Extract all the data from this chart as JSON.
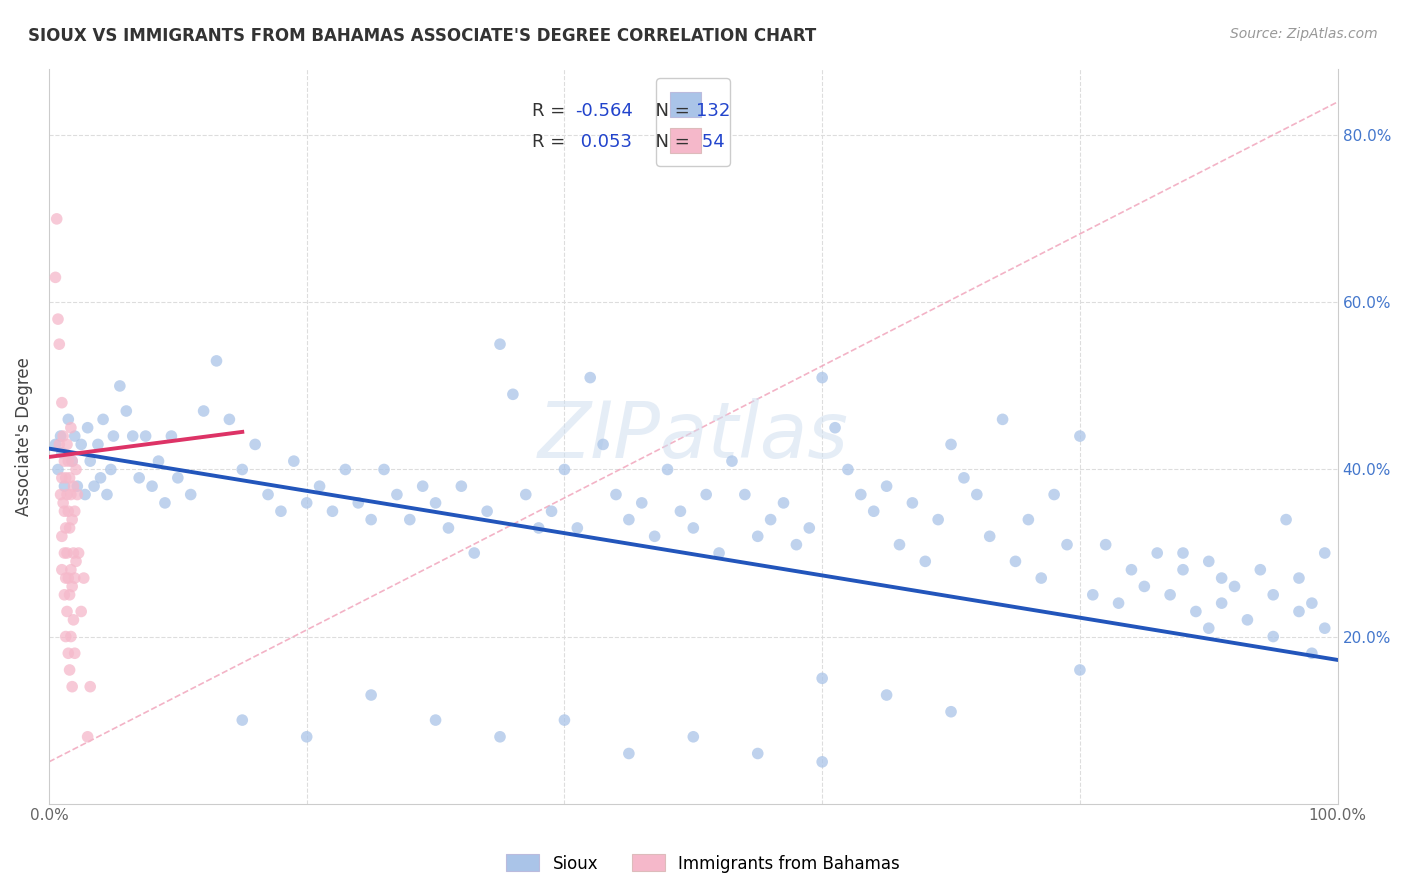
{
  "title": "SIOUX VS IMMIGRANTS FROM BAHAMAS ASSOCIATE'S DEGREE CORRELATION CHART",
  "source": "Source: ZipAtlas.com",
  "ylabel": "Associate's Degree",
  "xlim": [
    0.0,
    1.0
  ],
  "ylim": [
    0.0,
    0.88
  ],
  "x_ticks": [
    0.0,
    0.2,
    0.4,
    0.6,
    0.8,
    1.0
  ],
  "x_tick_labels": [
    "0.0%",
    "",
    "",
    "",
    "",
    "100.0%"
  ],
  "y_ticks": [
    0.2,
    0.4,
    0.6,
    0.8
  ],
  "y_tick_labels_right": [
    "20.0%",
    "40.0%",
    "60.0%",
    "80.0%"
  ],
  "sioux_color": "#aac4e8",
  "bahamas_color": "#f5b8ca",
  "sioux_line_color": "#2255bb",
  "bahamas_line_color": "#dd3366",
  "sioux_R": "-0.564",
  "sioux_N": "132",
  "bahamas_R": "0.053",
  "bahamas_N": "54",
  "watermark_text": "ZIPatlas",
  "sioux_trend": [
    0.0,
    0.425,
    1.0,
    0.172
  ],
  "bahamas_trend": [
    0.0,
    0.415,
    0.15,
    0.445
  ],
  "dashed_trend": [
    0.0,
    0.05,
    1.0,
    0.84
  ],
  "sioux_points": [
    [
      0.005,
      0.43
    ],
    [
      0.007,
      0.4
    ],
    [
      0.009,
      0.44
    ],
    [
      0.01,
      0.42
    ],
    [
      0.012,
      0.38
    ],
    [
      0.015,
      0.46
    ],
    [
      0.018,
      0.41
    ],
    [
      0.02,
      0.44
    ],
    [
      0.022,
      0.38
    ],
    [
      0.025,
      0.43
    ],
    [
      0.028,
      0.37
    ],
    [
      0.03,
      0.45
    ],
    [
      0.032,
      0.41
    ],
    [
      0.035,
      0.38
    ],
    [
      0.038,
      0.43
    ],
    [
      0.04,
      0.39
    ],
    [
      0.042,
      0.46
    ],
    [
      0.045,
      0.37
    ],
    [
      0.048,
      0.4
    ],
    [
      0.05,
      0.44
    ],
    [
      0.055,
      0.5
    ],
    [
      0.06,
      0.47
    ],
    [
      0.065,
      0.44
    ],
    [
      0.07,
      0.39
    ],
    [
      0.075,
      0.44
    ],
    [
      0.08,
      0.38
    ],
    [
      0.085,
      0.41
    ],
    [
      0.09,
      0.36
    ],
    [
      0.095,
      0.44
    ],
    [
      0.1,
      0.39
    ],
    [
      0.11,
      0.37
    ],
    [
      0.12,
      0.47
    ],
    [
      0.13,
      0.53
    ],
    [
      0.14,
      0.46
    ],
    [
      0.15,
      0.4
    ],
    [
      0.16,
      0.43
    ],
    [
      0.17,
      0.37
    ],
    [
      0.18,
      0.35
    ],
    [
      0.19,
      0.41
    ],
    [
      0.2,
      0.36
    ],
    [
      0.21,
      0.38
    ],
    [
      0.22,
      0.35
    ],
    [
      0.23,
      0.4
    ],
    [
      0.24,
      0.36
    ],
    [
      0.25,
      0.34
    ],
    [
      0.26,
      0.4
    ],
    [
      0.27,
      0.37
    ],
    [
      0.28,
      0.34
    ],
    [
      0.29,
      0.38
    ],
    [
      0.3,
      0.36
    ],
    [
      0.31,
      0.33
    ],
    [
      0.32,
      0.38
    ],
    [
      0.33,
      0.3
    ],
    [
      0.34,
      0.35
    ],
    [
      0.35,
      0.55
    ],
    [
      0.36,
      0.49
    ],
    [
      0.37,
      0.37
    ],
    [
      0.38,
      0.33
    ],
    [
      0.39,
      0.35
    ],
    [
      0.4,
      0.4
    ],
    [
      0.41,
      0.33
    ],
    [
      0.42,
      0.51
    ],
    [
      0.43,
      0.43
    ],
    [
      0.44,
      0.37
    ],
    [
      0.45,
      0.34
    ],
    [
      0.46,
      0.36
    ],
    [
      0.47,
      0.32
    ],
    [
      0.48,
      0.4
    ],
    [
      0.49,
      0.35
    ],
    [
      0.5,
      0.33
    ],
    [
      0.51,
      0.37
    ],
    [
      0.52,
      0.3
    ],
    [
      0.53,
      0.41
    ],
    [
      0.54,
      0.37
    ],
    [
      0.55,
      0.32
    ],
    [
      0.56,
      0.34
    ],
    [
      0.57,
      0.36
    ],
    [
      0.58,
      0.31
    ],
    [
      0.59,
      0.33
    ],
    [
      0.6,
      0.51
    ],
    [
      0.6,
      0.15
    ],
    [
      0.61,
      0.45
    ],
    [
      0.62,
      0.4
    ],
    [
      0.63,
      0.37
    ],
    [
      0.64,
      0.35
    ],
    [
      0.65,
      0.38
    ],
    [
      0.65,
      0.13
    ],
    [
      0.66,
      0.31
    ],
    [
      0.67,
      0.36
    ],
    [
      0.68,
      0.29
    ],
    [
      0.69,
      0.34
    ],
    [
      0.7,
      0.43
    ],
    [
      0.7,
      0.11
    ],
    [
      0.71,
      0.39
    ],
    [
      0.72,
      0.37
    ],
    [
      0.73,
      0.32
    ],
    [
      0.74,
      0.46
    ],
    [
      0.75,
      0.29
    ],
    [
      0.76,
      0.34
    ],
    [
      0.77,
      0.27
    ],
    [
      0.78,
      0.37
    ],
    [
      0.79,
      0.31
    ],
    [
      0.8,
      0.44
    ],
    [
      0.8,
      0.16
    ],
    [
      0.81,
      0.25
    ],
    [
      0.82,
      0.31
    ],
    [
      0.83,
      0.24
    ],
    [
      0.84,
      0.28
    ],
    [
      0.85,
      0.26
    ],
    [
      0.86,
      0.3
    ],
    [
      0.87,
      0.25
    ],
    [
      0.88,
      0.28
    ],
    [
      0.88,
      0.3
    ],
    [
      0.89,
      0.23
    ],
    [
      0.9,
      0.21
    ],
    [
      0.9,
      0.29
    ],
    [
      0.91,
      0.24
    ],
    [
      0.91,
      0.27
    ],
    [
      0.92,
      0.26
    ],
    [
      0.93,
      0.22
    ],
    [
      0.94,
      0.28
    ],
    [
      0.95,
      0.2
    ],
    [
      0.95,
      0.25
    ],
    [
      0.96,
      0.34
    ],
    [
      0.97,
      0.27
    ],
    [
      0.97,
      0.23
    ],
    [
      0.98,
      0.18
    ],
    [
      0.98,
      0.24
    ],
    [
      0.99,
      0.21
    ],
    [
      0.99,
      0.3
    ],
    [
      0.15,
      0.1
    ],
    [
      0.2,
      0.08
    ],
    [
      0.25,
      0.13
    ],
    [
      0.3,
      0.1
    ],
    [
      0.35,
      0.08
    ],
    [
      0.4,
      0.1
    ],
    [
      0.45,
      0.06
    ],
    [
      0.5,
      0.08
    ],
    [
      0.55,
      0.06
    ],
    [
      0.6,
      0.05
    ]
  ],
  "bahamas_points": [
    [
      0.005,
      0.63
    ],
    [
      0.006,
      0.7
    ],
    [
      0.007,
      0.58
    ],
    [
      0.008,
      0.55
    ],
    [
      0.008,
      0.43
    ],
    [
      0.009,
      0.37
    ],
    [
      0.01,
      0.48
    ],
    [
      0.01,
      0.39
    ],
    [
      0.01,
      0.32
    ],
    [
      0.01,
      0.28
    ],
    [
      0.011,
      0.44
    ],
    [
      0.011,
      0.36
    ],
    [
      0.012,
      0.41
    ],
    [
      0.012,
      0.35
    ],
    [
      0.012,
      0.3
    ],
    [
      0.012,
      0.25
    ],
    [
      0.013,
      0.39
    ],
    [
      0.013,
      0.33
    ],
    [
      0.013,
      0.27
    ],
    [
      0.013,
      0.2
    ],
    [
      0.014,
      0.43
    ],
    [
      0.014,
      0.37
    ],
    [
      0.014,
      0.3
    ],
    [
      0.014,
      0.23
    ],
    [
      0.015,
      0.41
    ],
    [
      0.015,
      0.35
    ],
    [
      0.015,
      0.27
    ],
    [
      0.015,
      0.18
    ],
    [
      0.016,
      0.39
    ],
    [
      0.016,
      0.33
    ],
    [
      0.016,
      0.25
    ],
    [
      0.016,
      0.16
    ],
    [
      0.017,
      0.45
    ],
    [
      0.017,
      0.37
    ],
    [
      0.017,
      0.28
    ],
    [
      0.017,
      0.2
    ],
    [
      0.018,
      0.41
    ],
    [
      0.018,
      0.34
    ],
    [
      0.018,
      0.26
    ],
    [
      0.018,
      0.14
    ],
    [
      0.019,
      0.38
    ],
    [
      0.019,
      0.3
    ],
    [
      0.019,
      0.22
    ],
    [
      0.02,
      0.35
    ],
    [
      0.02,
      0.27
    ],
    [
      0.02,
      0.18
    ],
    [
      0.021,
      0.4
    ],
    [
      0.021,
      0.29
    ],
    [
      0.022,
      0.37
    ],
    [
      0.023,
      0.3
    ],
    [
      0.025,
      0.23
    ],
    [
      0.027,
      0.27
    ],
    [
      0.03,
      0.08
    ],
    [
      0.032,
      0.14
    ]
  ]
}
